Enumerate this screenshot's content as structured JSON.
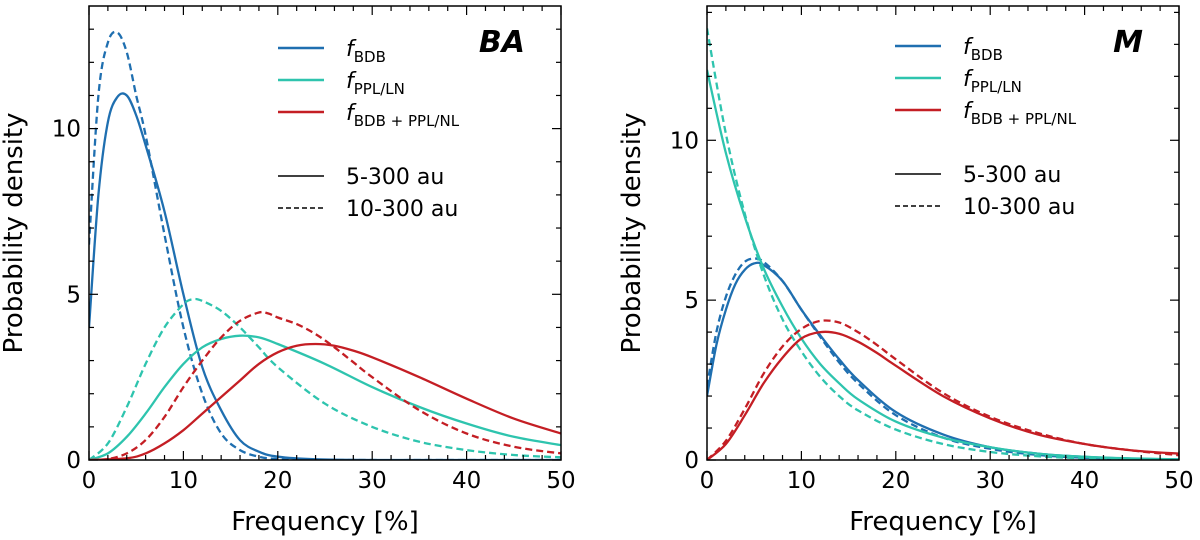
{
  "chart_data": [
    {
      "type": "line",
      "panel_label": "BA",
      "xlabel": "Frequency [%]",
      "ylabel": "Probability density",
      "xlim": [
        0,
        50
      ],
      "ylim": [
        0,
        13.7
      ],
      "xticks": [
        "0",
        "10",
        "20",
        "30",
        "40",
        "50"
      ],
      "yticks": [
        "0",
        "5",
        "10"
      ],
      "legend": {
        "placement": "top-right",
        "series_entries": [
          {
            "base": "f",
            "sub": "BDB",
            "color": "#1f6fb0"
          },
          {
            "base": "f",
            "sub": "PPL/LN",
            "color": "#2ec4ae"
          },
          {
            "base": "f",
            "sub": "BDB + PPL/NL",
            "color": "#c41e24"
          }
        ],
        "style_entries": [
          {
            "label": "5-300 au",
            "style": "solid"
          },
          {
            "label": "10-300 au",
            "style": "dashed"
          }
        ]
      },
      "series": [
        {
          "name": "f_BDB 5-300 au",
          "color": "#1f6fb0",
          "style": "solid",
          "x": [
            0,
            1,
            2,
            3,
            4,
            5,
            6,
            8,
            10,
            12,
            14,
            16,
            18,
            20,
            24,
            30,
            50
          ],
          "y": [
            4.0,
            8.0,
            10.2,
            10.95,
            11.0,
            10.4,
            9.5,
            7.5,
            5.0,
            2.8,
            1.5,
            0.6,
            0.25,
            0.1,
            0.02,
            0.0,
            0.0
          ]
        },
        {
          "name": "f_BDB 10-300 au",
          "color": "#1f6fb0",
          "style": "dashed",
          "x": [
            0,
            1,
            2,
            3,
            4,
            5,
            6,
            8,
            10,
            12,
            14,
            16,
            18,
            20,
            24,
            50
          ],
          "y": [
            6.5,
            11.0,
            12.6,
            12.9,
            12.3,
            11.0,
            9.8,
            6.8,
            4.0,
            2.0,
            0.8,
            0.3,
            0.1,
            0.03,
            0.0,
            0.0
          ]
        },
        {
          "name": "f_PPL/LN 5-300 au",
          "color": "#2ec4ae",
          "style": "solid",
          "x": [
            0,
            2,
            4,
            6,
            8,
            10,
            12,
            14,
            16,
            18,
            20,
            25,
            30,
            35,
            40,
            45,
            50
          ],
          "y": [
            0.0,
            0.2,
            0.7,
            1.4,
            2.2,
            2.9,
            3.4,
            3.65,
            3.75,
            3.7,
            3.5,
            2.9,
            2.2,
            1.6,
            1.1,
            0.7,
            0.45
          ]
        },
        {
          "name": "f_PPL/LN 10-300 au",
          "color": "#2ec4ae",
          "style": "dashed",
          "x": [
            0,
            2,
            4,
            6,
            8,
            10,
            11,
            12,
            14,
            16,
            18,
            20,
            25,
            30,
            35,
            40,
            45,
            50
          ],
          "y": [
            0.0,
            0.5,
            1.6,
            2.9,
            4.0,
            4.7,
            4.85,
            4.8,
            4.5,
            4.0,
            3.4,
            2.8,
            1.7,
            1.0,
            0.55,
            0.3,
            0.15,
            0.08
          ]
        },
        {
          "name": "f_BDB+PPL/NL 5-300 au",
          "color": "#c41e24",
          "style": "solid",
          "x": [
            0,
            4,
            6,
            8,
            10,
            12,
            14,
            16,
            18,
            20,
            22,
            24,
            26,
            28,
            30,
            35,
            40,
            45,
            50
          ],
          "y": [
            0.0,
            0.05,
            0.2,
            0.5,
            0.9,
            1.4,
            1.9,
            2.4,
            2.9,
            3.25,
            3.45,
            3.5,
            3.45,
            3.3,
            3.1,
            2.5,
            1.85,
            1.25,
            0.8
          ]
        },
        {
          "name": "f_BDB+PPL/NL 10-300 au",
          "color": "#c41e24",
          "style": "dashed",
          "x": [
            0,
            2,
            4,
            6,
            8,
            10,
            12,
            14,
            16,
            18,
            19,
            20,
            22,
            24,
            26,
            28,
            30,
            35,
            40,
            45,
            50
          ],
          "y": [
            0.0,
            0.03,
            0.2,
            0.6,
            1.3,
            2.2,
            3.0,
            3.7,
            4.2,
            4.45,
            4.42,
            4.3,
            4.1,
            3.8,
            3.4,
            2.95,
            2.5,
            1.5,
            0.8,
            0.4,
            0.2
          ]
        }
      ]
    },
    {
      "type": "line",
      "panel_label": "M",
      "xlabel": "Frequency [%]",
      "ylabel": "Probability density",
      "xlim": [
        0,
        50
      ],
      "ylim": [
        0,
        14.2
      ],
      "xticks": [
        "0",
        "10",
        "20",
        "30",
        "40",
        "50"
      ],
      "yticks": [
        "0",
        "5",
        "10"
      ],
      "legend": {
        "placement": "top-right",
        "series_entries": [
          {
            "base": "f",
            "sub": "BDB",
            "color": "#1f6fb0"
          },
          {
            "base": "f",
            "sub": "PPL/LN",
            "color": "#2ec4ae"
          },
          {
            "base": "f",
            "sub": "BDB + PPL/NL",
            "color": "#c41e24"
          }
        ],
        "style_entries": [
          {
            "label": "5-300 au",
            "style": "solid"
          },
          {
            "label": "10-300 au",
            "style": "dashed"
          }
        ]
      },
      "series": [
        {
          "name": "f_BDB 5-300 au",
          "color": "#1f6fb0",
          "style": "solid",
          "x": [
            0,
            1,
            2,
            3,
            4,
            5,
            6,
            8,
            10,
            12,
            14,
            16,
            20,
            25,
            30,
            35,
            40,
            45,
            50
          ],
          "y": [
            2.0,
            3.6,
            4.7,
            5.5,
            5.95,
            6.15,
            6.1,
            5.6,
            4.7,
            3.9,
            3.15,
            2.5,
            1.5,
            0.8,
            0.4,
            0.2,
            0.1,
            0.04,
            0.02
          ]
        },
        {
          "name": "f_BDB 10-300 au",
          "color": "#1f6fb0",
          "style": "dashed",
          "x": [
            0,
            1,
            2,
            3,
            4,
            5,
            6,
            8,
            10,
            12,
            14,
            16,
            20,
            25,
            30,
            35,
            40,
            45,
            50
          ],
          "y": [
            2.3,
            4.0,
            5.1,
            5.8,
            6.2,
            6.3,
            6.2,
            5.6,
            4.7,
            3.85,
            3.05,
            2.4,
            1.4,
            0.7,
            0.35,
            0.16,
            0.07,
            0.03,
            0.01
          ]
        },
        {
          "name": "f_PPL/LN 5-300 au",
          "color": "#2ec4ae",
          "style": "solid",
          "x": [
            0,
            2,
            4,
            6,
            8,
            10,
            12,
            14,
            16,
            20,
            25,
            30,
            35,
            40,
            45,
            50
          ],
          "y": [
            12.2,
            9.6,
            7.6,
            6.0,
            4.8,
            3.8,
            3.0,
            2.4,
            1.9,
            1.2,
            0.7,
            0.4,
            0.2,
            0.1,
            0.05,
            0.02
          ]
        },
        {
          "name": "f_PPL/LN 10-300 au",
          "color": "#2ec4ae",
          "style": "dashed",
          "x": [
            0,
            2,
            4,
            6,
            8,
            10,
            12,
            14,
            16,
            20,
            25,
            30,
            35,
            40,
            45,
            50
          ],
          "y": [
            13.5,
            10.2,
            7.7,
            5.8,
            4.4,
            3.4,
            2.6,
            2.0,
            1.55,
            0.95,
            0.5,
            0.25,
            0.12,
            0.05,
            0.02,
            0.01
          ]
        },
        {
          "name": "f_BDB+PPL/NL 5-300 au",
          "color": "#c41e24",
          "style": "solid",
          "x": [
            0,
            2,
            4,
            6,
            8,
            10,
            12,
            14,
            16,
            18,
            20,
            25,
            30,
            35,
            40,
            45,
            50
          ],
          "y": [
            0.0,
            0.5,
            1.4,
            2.4,
            3.2,
            3.8,
            4.0,
            3.95,
            3.7,
            3.35,
            2.95,
            2.0,
            1.3,
            0.8,
            0.5,
            0.3,
            0.2
          ]
        },
        {
          "name": "f_BDB+PPL/NL 10-300 au",
          "color": "#c41e24",
          "style": "dashed",
          "x": [
            0,
            2,
            4,
            6,
            8,
            10,
            12,
            14,
            16,
            18,
            20,
            25,
            30,
            35,
            40,
            45,
            50
          ],
          "y": [
            0.0,
            0.6,
            1.6,
            2.7,
            3.55,
            4.1,
            4.35,
            4.3,
            4.0,
            3.6,
            3.15,
            2.1,
            1.35,
            0.85,
            0.5,
            0.3,
            0.15
          ]
        }
      ]
    }
  ]
}
